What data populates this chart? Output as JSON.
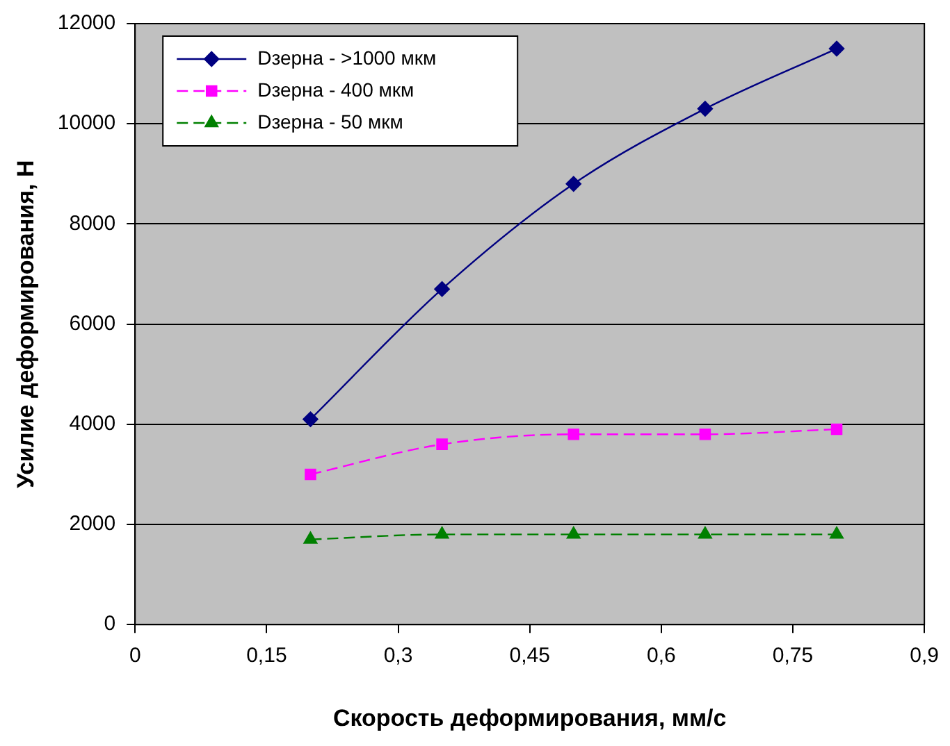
{
  "chart_data": {
    "type": "line",
    "xlabel": "Скорость деформирования, мм/с",
    "ylabel": "Усилие деформирования, Н",
    "x": [
      0.2,
      0.35,
      0.5,
      0.65,
      0.8
    ],
    "series": [
      {
        "name": "Dзерна - >1000 мкм",
        "color": "#000080",
        "values": [
          4100,
          6700,
          8800,
          10300,
          11500
        ],
        "marker": "diamond",
        "line_style": "solid"
      },
      {
        "name": "Dзерна - 400 мкм",
        "color": "#ff00ff",
        "values": [
          3000,
          3600,
          3800,
          3800,
          3900
        ],
        "marker": "square",
        "line_style": "dashed"
      },
      {
        "name": "Dзерна - 50 мкм",
        "color": "#008000",
        "values": [
          1700,
          1800,
          1800,
          1800,
          1800
        ],
        "marker": "triangle",
        "line_style": "dashed"
      }
    ],
    "xlim": [
      0,
      0.9
    ],
    "xticks": [
      0,
      {
        "value": 0.15,
        "label": "0,15"
      },
      {
        "value": 0.3,
        "label": "0,3"
      },
      {
        "value": 0.45,
        "label": "0,45"
      },
      {
        "value": 0.6,
        "label": "0,6"
      },
      {
        "value": 0.75,
        "label": "0,75"
      },
      {
        "value": 0.9,
        "label": "0,9"
      }
    ],
    "ylim": [
      0,
      12000
    ],
    "yticks": [
      0,
      2000,
      4000,
      6000,
      8000,
      10000,
      12000
    ],
    "grid": "y",
    "legend": "top left"
  }
}
